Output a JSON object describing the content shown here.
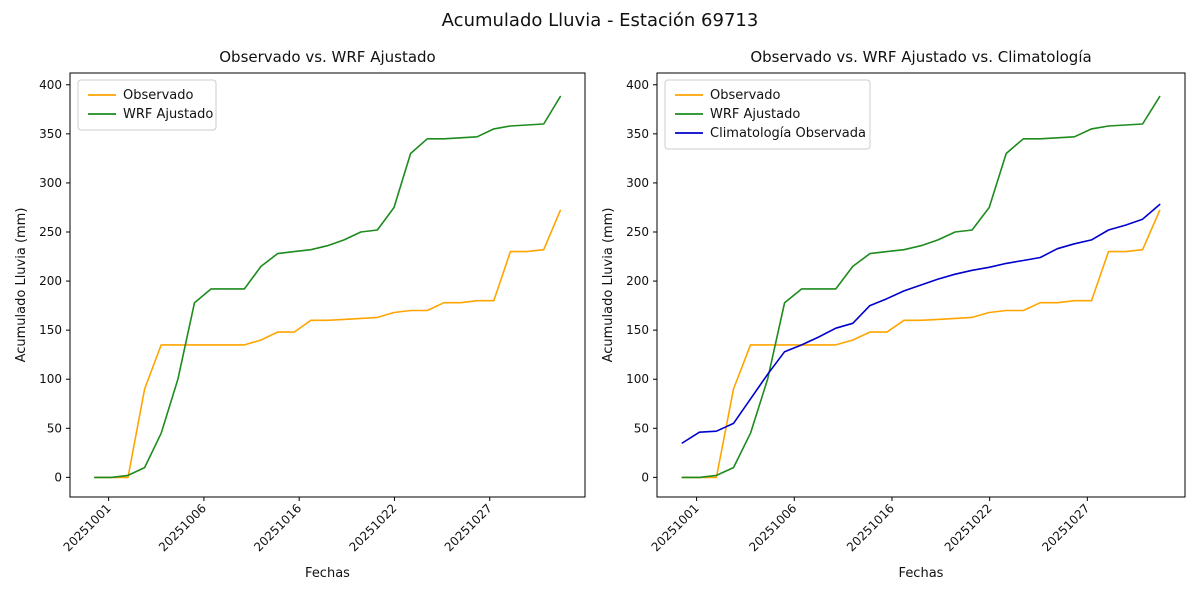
{
  "figure": {
    "suptitle": "Acumulado Lluvia - Estación 69713",
    "background_color": "#ffffff",
    "spine_color": "#000000",
    "legend_border_color": "#cccccc"
  },
  "chart_data": [
    {
      "type": "line",
      "title": "Observado vs. WRF Ajustado",
      "xlabel": "Fechas",
      "ylabel": "Acumulado Lluvia (mm)",
      "x_tick_labels": [
        "20251001",
        "20251006",
        "20251016",
        "20251022",
        "20251027"
      ],
      "y_ticks": [
        0,
        50,
        100,
        150,
        200,
        250,
        300,
        350,
        400
      ],
      "ylim": [
        -20,
        412
      ],
      "grid": false,
      "legend_position": "upper left",
      "series": [
        {
          "name": "Observado",
          "color": "#FFA500",
          "values": [
            0,
            0,
            0,
            90,
            135,
            135,
            135,
            135,
            135,
            135,
            140,
            148,
            148,
            160,
            160,
            161,
            162,
            163,
            168,
            170,
            170,
            178,
            178,
            180,
            180,
            230,
            230,
            232,
            272
          ]
        },
        {
          "name": "WRF Ajustado",
          "color": "#1E8B1E",
          "values": [
            0,
            0,
            2,
            10,
            45,
            100,
            178,
            192,
            192,
            192,
            215,
            228,
            230,
            232,
            236,
            242,
            250,
            252,
            275,
            330,
            345,
            345,
            346,
            347,
            355,
            358,
            359,
            360,
            388
          ]
        }
      ]
    },
    {
      "type": "line",
      "title": "Observado vs. WRF Ajustado vs. Climatología",
      "xlabel": "Fechas",
      "ylabel": "Acumulado Lluvia (mm)",
      "x_tick_labels": [
        "20251001",
        "20251006",
        "20251016",
        "20251022",
        "20251027"
      ],
      "y_ticks": [
        0,
        50,
        100,
        150,
        200,
        250,
        300,
        350,
        400
      ],
      "ylim": [
        -20,
        412
      ],
      "grid": false,
      "legend_position": "upper left",
      "series": [
        {
          "name": "Observado",
          "color": "#FFA500",
          "values": [
            0,
            0,
            0,
            90,
            135,
            135,
            135,
            135,
            135,
            135,
            140,
            148,
            148,
            160,
            160,
            161,
            162,
            163,
            168,
            170,
            170,
            178,
            178,
            180,
            180,
            230,
            230,
            232,
            272
          ]
        },
        {
          "name": "WRF Ajustado",
          "color": "#1E8B1E",
          "values": [
            0,
            0,
            2,
            10,
            45,
            100,
            178,
            192,
            192,
            192,
            215,
            228,
            230,
            232,
            236,
            242,
            250,
            252,
            275,
            330,
            345,
            345,
            346,
            347,
            355,
            358,
            359,
            360,
            388
          ]
        },
        {
          "name": "Climatología Observada",
          "color": "#0000CC",
          "values": [
            35,
            46,
            47,
            55,
            80,
            105,
            128,
            135,
            143,
            152,
            157,
            175,
            182,
            190,
            196,
            202,
            207,
            211,
            214,
            218,
            221,
            224,
            233,
            238,
            242,
            252,
            257,
            263,
            278
          ]
        }
      ]
    }
  ]
}
